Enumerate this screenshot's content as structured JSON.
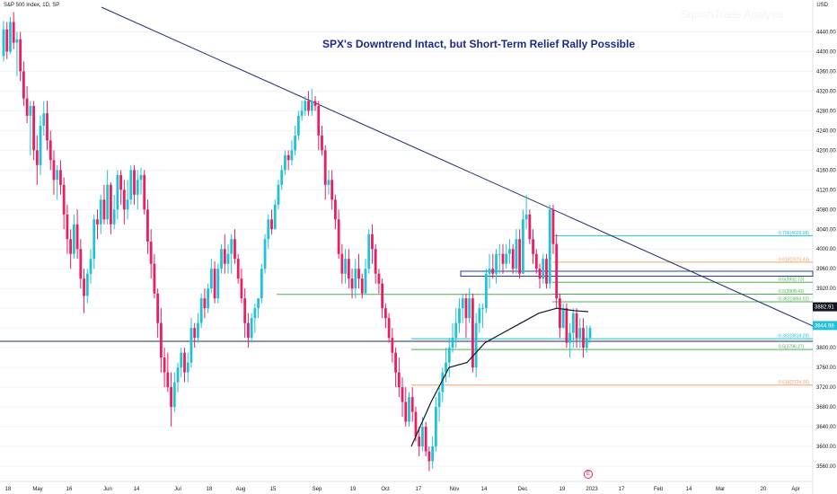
{
  "header": {
    "symbol": "S&P 500 Index, 1D, SP",
    "watermark": "SquishTrade Analysis",
    "currency": "USD"
  },
  "chart_data": {
    "type": "candlestick",
    "title": "SPX's Downtrend Intact, but Short-Term Relief Rally Possible",
    "ylim": [
      3540,
      4490
    ],
    "y_ticks": [
      3560,
      3600,
      3640,
      3680,
      3720,
      3760,
      3800,
      3840,
      3880,
      3920,
      3960,
      4000,
      4040,
      4080,
      4120,
      4160,
      4200,
      4240,
      4280,
      4320,
      4360,
      4400,
      4440
    ],
    "x_ticks": [
      "18",
      "May",
      "16",
      "Jun",
      "14",
      "Jul",
      "18",
      "Aug",
      "15",
      "Sep",
      "19",
      "Oct",
      "17",
      "Nov",
      "14",
      "Dec",
      "19",
      "2023",
      "17",
      "Feb",
      "14",
      "Mar",
      "20",
      "Apr"
    ],
    "price_labels": [
      "3882.91",
      "3844.98"
    ],
    "colors": {
      "up": "#22c2d6",
      "down": "#e91e63",
      "trend": "#1e2a6b",
      "ma": "#131722",
      "title": "#1a2a8c"
    },
    "candles": [
      [
        4391,
        4445,
        4380,
        4462
      ],
      [
        4445,
        4400,
        4385,
        4460
      ],
      [
        4400,
        4460,
        4395,
        4470
      ],
      [
        4460,
        4418,
        4405,
        4480
      ],
      [
        4418,
        4425,
        4350,
        4440
      ],
      [
        4425,
        4360,
        4340,
        4440
      ],
      [
        4360,
        4305,
        4290,
        4380
      ],
      [
        4305,
        4270,
        4255,
        4330
      ],
      [
        4270,
        4290,
        4190,
        4300
      ],
      [
        4290,
        4200,
        4180,
        4300
      ],
      [
        4200,
        4170,
        4130,
        4230
      ],
      [
        4170,
        4250,
        4150,
        4270
      ],
      [
        4250,
        4275,
        4230,
        4300
      ],
      [
        4275,
        4220,
        4200,
        4300
      ],
      [
        4220,
        4180,
        4160,
        4240
      ],
      [
        4180,
        4140,
        4110,
        4200
      ],
      [
        4140,
        4160,
        4100,
        4170
      ],
      [
        4160,
        4130,
        4110,
        4180
      ],
      [
        4130,
        4070,
        4040,
        4145
      ],
      [
        4070,
        4020,
        3990,
        4090
      ],
      [
        4020,
        3990,
        3960,
        4040
      ],
      [
        3990,
        4050,
        3980,
        4070
      ],
      [
        4050,
        4000,
        3980,
        4080
      ],
      [
        4000,
        3940,
        3920,
        4020
      ],
      [
        3940,
        3905,
        3870,
        3960
      ],
      [
        3905,
        3950,
        3890,
        3960
      ],
      [
        3950,
        3980,
        3930,
        4000
      ],
      [
        3980,
        4060,
        3960,
        4070
      ],
      [
        4060,
        4050,
        4020,
        4080
      ],
      [
        4050,
        4100,
        4030,
        4110
      ],
      [
        4100,
        4060,
        4050,
        4130
      ],
      [
        4060,
        4130,
        4050,
        4160
      ],
      [
        4130,
        4050,
        4030,
        4135
      ],
      [
        4050,
        4080,
        4040,
        4110
      ],
      [
        4080,
        4150,
        4060,
        4160
      ],
      [
        4150,
        4120,
        4090,
        4160
      ],
      [
        4120,
        4080,
        4050,
        4140
      ],
      [
        4080,
        4100,
        4060,
        4140
      ],
      [
        4100,
        4160,
        4090,
        4170
      ],
      [
        4160,
        4110,
        4090,
        4170
      ],
      [
        4110,
        4140,
        4080,
        4160
      ],
      [
        4140,
        4150,
        4110,
        4165
      ],
      [
        4150,
        4080,
        4070,
        4160
      ],
      [
        4080,
        4015,
        3990,
        4100
      ],
      [
        4015,
        3970,
        3940,
        4040
      ],
      [
        3970,
        3910,
        3900,
        3990
      ],
      [
        3910,
        3850,
        3820,
        3920
      ],
      [
        3850,
        3780,
        3750,
        3880
      ],
      [
        3780,
        3750,
        3720,
        3800
      ],
      [
        3750,
        3720,
        3710,
        3790
      ],
      [
        3720,
        3680,
        3640,
        3750
      ],
      [
        3680,
        3730,
        3670,
        3750
      ],
      [
        3730,
        3760,
        3710,
        3770
      ],
      [
        3760,
        3790,
        3740,
        3800
      ],
      [
        3790,
        3750,
        3730,
        3800
      ],
      [
        3750,
        3770,
        3730,
        3790
      ],
      [
        3770,
        3840,
        3760,
        3860
      ],
      [
        3840,
        3820,
        3800,
        3850
      ],
      [
        3820,
        3850,
        3810,
        3870
      ],
      [
        3850,
        3900,
        3840,
        3910
      ],
      [
        3900,
        3880,
        3860,
        3920
      ],
      [
        3880,
        3920,
        3870,
        3930
      ],
      [
        3920,
        3960,
        3910,
        3980
      ],
      [
        3960,
        3900,
        3890,
        3975
      ],
      [
        3900,
        3960,
        3890,
        3970
      ],
      [
        3960,
        4000,
        3950,
        4010
      ],
      [
        4000,
        3970,
        3950,
        4030
      ],
      [
        3970,
        3990,
        3950,
        4010
      ],
      [
        3990,
        4020,
        3950,
        4030
      ],
      [
        4020,
        3980,
        3970,
        4040
      ],
      [
        3980,
        3940,
        3930,
        3990
      ],
      [
        3940,
        3900,
        3890,
        3960
      ],
      [
        3900,
        3850,
        3820,
        3920
      ],
      [
        3850,
        3820,
        3800,
        3870
      ],
      [
        3820,
        3860,
        3810,
        3870
      ],
      [
        3860,
        3880,
        3830,
        3890
      ],
      [
        3880,
        3900,
        3860,
        3900
      ],
      [
        3900,
        3960,
        3890,
        3970
      ],
      [
        3960,
        4020,
        3950,
        4030
      ],
      [
        4020,
        4060,
        4000,
        4070
      ],
      [
        4060,
        4040,
        4030,
        4080
      ],
      [
        4040,
        4090,
        4040,
        4100
      ],
      [
        4090,
        4130,
        4080,
        4140
      ],
      [
        4130,
        4160,
        4120,
        4170
      ],
      [
        4160,
        4190,
        4150,
        4200
      ],
      [
        4190,
        4180,
        4160,
        4200
      ],
      [
        4180,
        4200,
        4170,
        4220
      ],
      [
        4200,
        4230,
        4190,
        4250
      ],
      [
        4230,
        4270,
        4220,
        4280
      ],
      [
        4270,
        4280,
        4260,
        4300
      ],
      [
        4280,
        4300,
        4270,
        4310
      ],
      [
        4300,
        4280,
        4270,
        4320
      ],
      [
        4280,
        4300,
        4270,
        4325
      ],
      [
        4300,
        4290,
        4280,
        4310
      ],
      [
        4290,
        4230,
        4200,
        4300
      ],
      [
        4230,
        4200,
        4190,
        4250
      ],
      [
        4200,
        4130,
        4100,
        4210
      ],
      [
        4130,
        4140,
        4110,
        4160
      ],
      [
        4140,
        4100,
        4080,
        4160
      ],
      [
        4100,
        4060,
        4040,
        4110
      ],
      [
        4060,
        3990,
        3980,
        4080
      ],
      [
        3990,
        3950,
        3930,
        4010
      ],
      [
        3950,
        3980,
        3930,
        4000
      ],
      [
        3980,
        3940,
        3920,
        4000
      ],
      [
        3940,
        3920,
        3900,
        3960
      ],
      [
        3920,
        3960,
        3900,
        3980
      ],
      [
        3960,
        3940,
        3920,
        3990
      ],
      [
        3940,
        3910,
        3900,
        3950
      ],
      [
        3910,
        3960,
        3910,
        3980
      ],
      [
        3960,
        4030,
        3950,
        4040
      ],
      [
        4030,
        4000,
        3970,
        4050
      ],
      [
        4000,
        3950,
        3930,
        4010
      ],
      [
        3950,
        3930,
        3910,
        3960
      ],
      [
        3930,
        3880,
        3860,
        3940
      ],
      [
        3880,
        3860,
        3840,
        3890
      ],
      [
        3860,
        3820,
        3810,
        3870
      ],
      [
        3820,
        3790,
        3770,
        3840
      ],
      [
        3790,
        3750,
        3720,
        3800
      ],
      [
        3750,
        3720,
        3700,
        3780
      ],
      [
        3720,
        3690,
        3660,
        3740
      ],
      [
        3690,
        3650,
        3640,
        3720
      ],
      [
        3650,
        3700,
        3640,
        3710
      ],
      [
        3700,
        3670,
        3650,
        3720
      ],
      [
        3670,
        3620,
        3610,
        3680
      ],
      [
        3620,
        3600,
        3580,
        3640
      ],
      [
        3600,
        3640,
        3590,
        3660
      ],
      [
        3640,
        3590,
        3580,
        3650
      ],
      [
        3590,
        3570,
        3550,
        3600
      ],
      [
        3570,
        3600,
        3555,
        3620
      ],
      [
        3600,
        3680,
        3590,
        3700
      ],
      [
        3680,
        3710,
        3650,
        3720
      ],
      [
        3710,
        3750,
        3690,
        3760
      ],
      [
        3750,
        3770,
        3730,
        3800
      ],
      [
        3770,
        3800,
        3740,
        3820
      ],
      [
        3800,
        3820,
        3790,
        3850
      ],
      [
        3820,
        3850,
        3800,
        3880
      ],
      [
        3850,
        3880,
        3830,
        3900
      ],
      [
        3880,
        3900,
        3850,
        3910
      ],
      [
        3900,
        3860,
        3820,
        3910
      ],
      [
        3860,
        3900,
        3850,
        3920
      ],
      [
        3900,
        3760,
        3750,
        3910
      ],
      [
        3760,
        3850,
        3740,
        3870
      ],
      [
        3850,
        3880,
        3830,
        3890
      ],
      [
        3880,
        3880,
        3840,
        3890
      ],
      [
        3880,
        3950,
        3870,
        3960
      ],
      [
        3950,
        3960,
        3920,
        3990
      ],
      [
        3960,
        3950,
        3940,
        3990
      ],
      [
        3950,
        3990,
        3930,
        4000
      ],
      [
        3990,
        3990,
        3950,
        4010
      ],
      [
        3990,
        3970,
        3950,
        4010
      ],
      [
        3970,
        3990,
        3960,
        4010
      ],
      [
        3990,
        4000,
        3970,
        4020
      ],
      [
        4000,
        3960,
        3950,
        4010
      ],
      [
        3960,
        4020,
        3950,
        4040
      ],
      [
        4020,
        3950,
        3940,
        4040
      ],
      [
        3950,
        4060,
        3950,
        4080
      ],
      [
        4060,
        4070,
        4040,
        4110
      ],
      [
        4070,
        4020,
        4010,
        4080
      ],
      [
        4020,
        3990,
        3970,
        4040
      ],
      [
        3990,
        3960,
        3950,
        4000
      ],
      [
        3960,
        3940,
        3920,
        3970
      ],
      [
        3940,
        3980,
        3930,
        3990
      ],
      [
        3980,
        3930,
        3920,
        3990
      ],
      [
        3930,
        4080,
        3920,
        4090
      ],
      [
        4080,
        4010,
        3990,
        4090
      ],
      [
        4010,
        3900,
        3880,
        4030
      ],
      [
        3900,
        3840,
        3820,
        3910
      ],
      [
        3840,
        3880,
        3840,
        3890
      ],
      [
        3880,
        3810,
        3800,
        3890
      ],
      [
        3810,
        3830,
        3780,
        3850
      ],
      [
        3830,
        3870,
        3800,
        3880
      ],
      [
        3870,
        3820,
        3800,
        3880
      ],
      [
        3820,
        3840,
        3800,
        3860
      ],
      [
        3840,
        3800,
        3780,
        3860
      ],
      [
        3800,
        3820,
        3790,
        3845
      ],
      [
        3820,
        3840,
        3810,
        3845
      ]
    ],
    "moving_average": [
      {
        "x": 458,
        "y": 3600
      },
      {
        "x": 480,
        "y": 3690
      },
      {
        "x": 500,
        "y": 3760
      },
      {
        "x": 520,
        "y": 3770
      },
      {
        "x": 540,
        "y": 3810
      },
      {
        "x": 560,
        "y": 3830
      },
      {
        "x": 580,
        "y": 3850
      },
      {
        "x": 600,
        "y": 3870
      },
      {
        "x": 620,
        "y": 3880
      },
      {
        "x": 640,
        "y": 3875
      },
      {
        "x": 655,
        "y": 3873
      }
    ],
    "trendline": {
      "from": {
        "x": 113,
        "y": 4490
      },
      "to": {
        "x": 910,
        "y": 3840
      }
    },
    "fib_levels": [
      {
        "label": "0.786(4026.98)",
        "value": 4026.98,
        "x0": 615,
        "x1": 905,
        "color": "#22c2d6"
      },
      {
        "label": "0.618(3973.43)",
        "value": 3973.43,
        "x0": 615,
        "x1": 905,
        "color": "#f5a26a"
      },
      {
        "label": "0.5(3932.73)",
        "value": 3932.73,
        "x0": 615,
        "x1": 905,
        "color": "#4caf50"
      },
      {
        "label": "0.5(3908.43)",
        "value": 3908.43,
        "x0": 615,
        "x1": 905,
        "color": "#4caf50"
      },
      {
        "label": "0.382(3893.02)",
        "value": 3893.02,
        "x0": 615,
        "x1": 905,
        "color": "#4caf50"
      },
      {
        "label": "0.382(3818.28)",
        "value": 3818.28,
        "x0": 458,
        "x1": 905,
        "color": "#22c2d6"
      },
      {
        "label": "0.5(3796.27)",
        "value": 3796.27,
        "x0": 458,
        "x1": 905,
        "color": "#4caf50"
      },
      {
        "label": "0.618(3724.36)",
        "value": 3724.36,
        "x0": 458,
        "x1": 905,
        "color": "#f5a26a"
      }
    ],
    "horizontal_lines": [
      {
        "value": 3813,
        "x0": 0,
        "x1": 905,
        "color": "#1e2a6b"
      },
      {
        "value": 3908,
        "x0": 308,
        "x1": 615,
        "color": "#4caf50"
      }
    ],
    "zones": [
      {
        "y0": 3955,
        "y1": 3945,
        "x0": 513,
        "x1": 905,
        "color": "#1e3f9a"
      }
    ]
  }
}
